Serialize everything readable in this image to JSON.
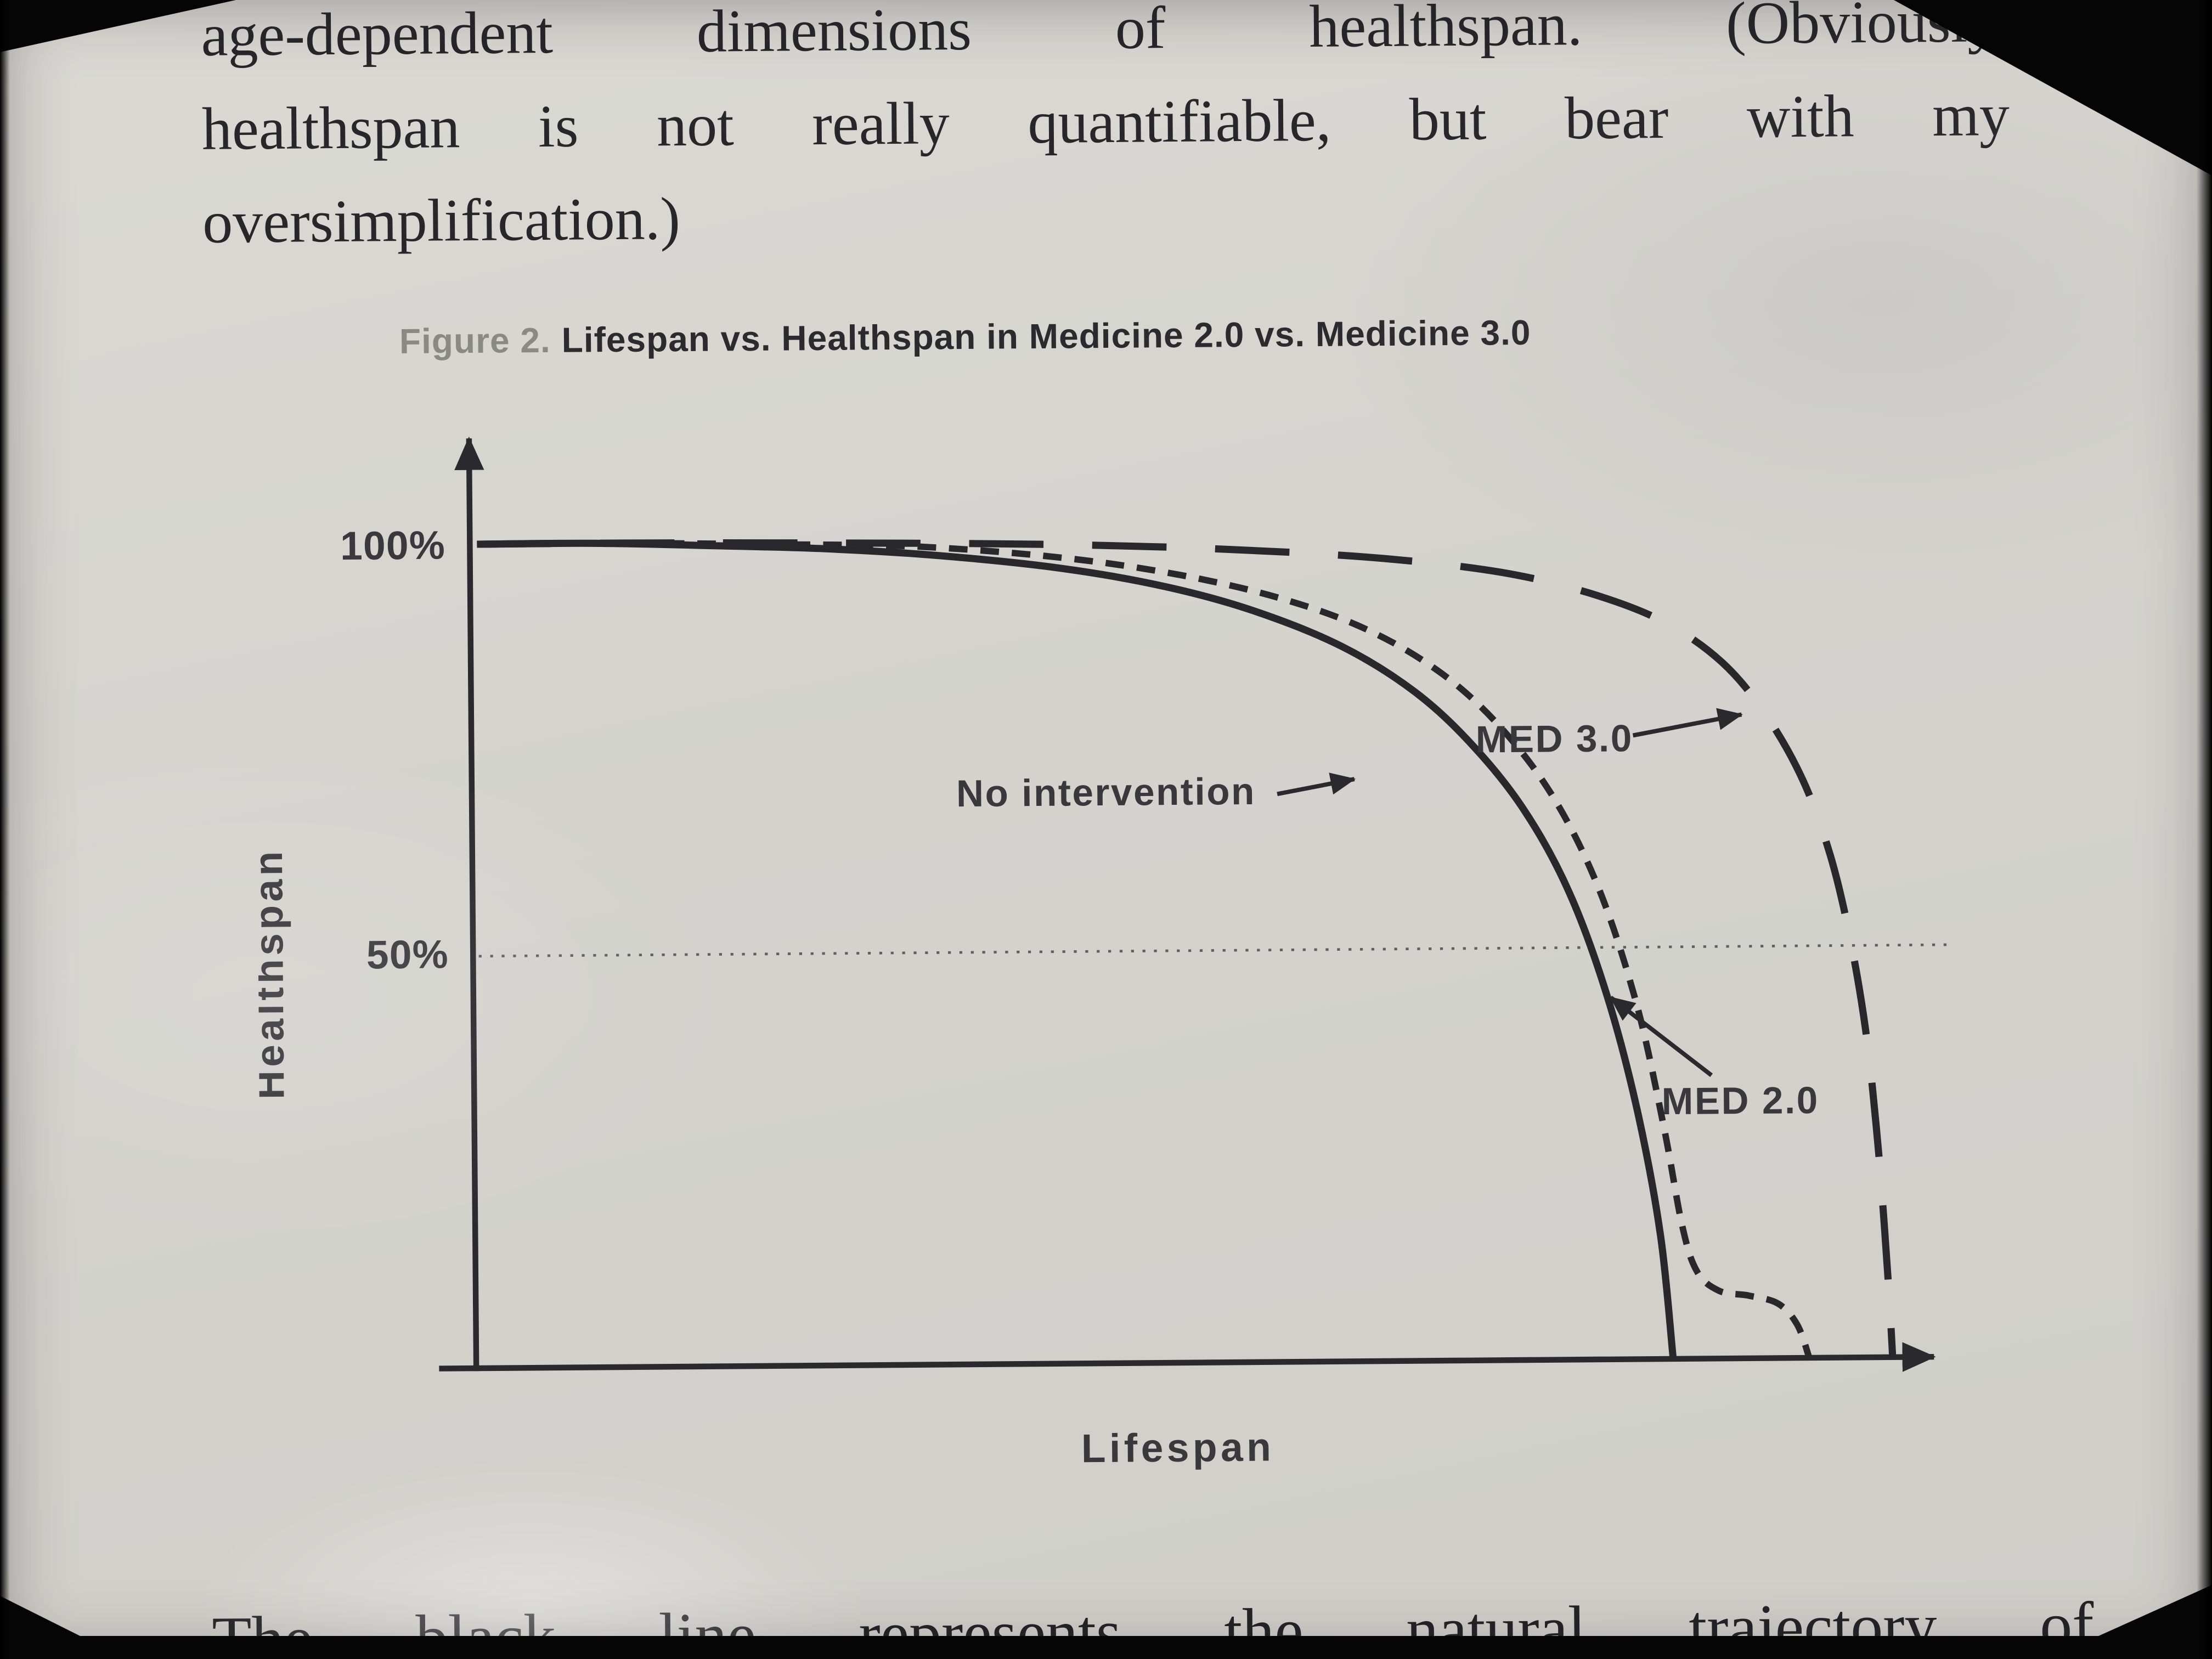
{
  "page": {
    "top_lines": [
      "age-dependent dimensions of healthspan. (Obviously,",
      "healthspan is not really quantifiable, but bear with my",
      "oversimplification.)"
    ],
    "bottom_line": "The black line represents the natural trajectory of"
  },
  "figure": {
    "caption_prefix": "Figure 2.",
    "caption_title": "Lifespan vs. Healthspan in Medicine 2.0 vs. Medicine 3.0"
  },
  "chart_data": {
    "type": "line",
    "title": "Lifespan vs. Healthspan in Medicine 2.0 vs. Medicine 3.0",
    "xlabel": "Lifespan",
    "ylabel": "Healthspan",
    "ylim_pct": [
      0,
      100
    ],
    "x_range_pct": [
      0,
      100
    ],
    "y_ticks": [
      "100%",
      "50%"
    ],
    "gridlines": [
      {
        "axis": "y",
        "value_pct": 50,
        "style": "dotted"
      }
    ],
    "legend_position": "inline annotations with arrows",
    "series": [
      {
        "name": "No intervention",
        "style": "solid",
        "x": [
          0,
          8,
          16,
          24,
          32,
          40,
          47,
          53,
          59,
          64,
          68,
          71.5,
          74.5,
          77,
          79,
          80.5,
          81.3
        ],
        "y": [
          100,
          100,
          99.6,
          99.1,
          98.1,
          96.5,
          94.2,
          91.2,
          86.8,
          81.2,
          74.5,
          66.5,
          56.5,
          44,
          30,
          15,
          0
        ]
      },
      {
        "name": "MED 2.0",
        "style": "short-dash",
        "x": [
          0,
          10,
          20,
          30,
          40,
          48,
          55,
          61,
          66,
          70,
          73.5,
          76.5,
          79,
          80.8,
          82,
          83,
          84.5,
          86.5,
          88.5,
          89.8,
          90.6
        ],
        "y": [
          100,
          100,
          99.7,
          99.3,
          97.8,
          95.6,
          92.6,
          88.6,
          83.2,
          76.5,
          68,
          57,
          43,
          28,
          16,
          10.5,
          8.2,
          7.6,
          6.6,
          4,
          0
        ]
      },
      {
        "name": "MED 3.0",
        "style": "long-dash",
        "x": [
          0,
          10,
          25,
          40,
          52,
          62,
          70,
          76,
          81,
          85,
          88,
          90.5,
          92.3,
          93.6,
          94.6,
          95.3,
          95.8,
          96.1,
          96.3
        ],
        "y": [
          100,
          100,
          99.8,
          99.4,
          98.6,
          97.4,
          95.6,
          93,
          89.5,
          84.5,
          78,
          70,
          61,
          51,
          40,
          28,
          16,
          7,
          0
        ]
      }
    ],
    "annotations": [
      {
        "label": "No intervention",
        "points_to": "solid curve"
      },
      {
        "label": "MED 3.0",
        "points_to": "long-dash curve"
      },
      {
        "label": "MED 2.0",
        "points_to": "short-dash curve"
      }
    ]
  }
}
